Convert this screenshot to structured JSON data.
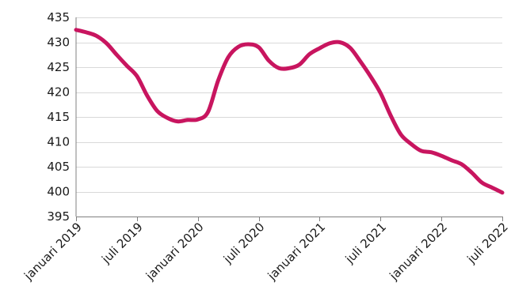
{
  "chart_data": {
    "type": "line",
    "title": "",
    "xlabel": "",
    "ylabel": "",
    "ylim": [
      395,
      435
    ],
    "yticks": [
      "395",
      "400",
      "405",
      "410",
      "415",
      "420",
      "425",
      "430",
      "435"
    ],
    "xticks": [
      "januari 2019",
      "juli 2019",
      "januari 2020",
      "juli 2020",
      "januari 2021",
      "juli 2021",
      "januari 2022",
      "juli 2022"
    ],
    "xlim": [
      "januari 2019",
      "juli 2022"
    ],
    "grid": true,
    "legend": "none",
    "series": [
      {
        "color": "#c8155f",
        "x": [
          "2019-01",
          "2019-02",
          "2019-03",
          "2019-04",
          "2019-05",
          "2019-06",
          "2019-07",
          "2019-08",
          "2019-09",
          "2019-10",
          "2019-11",
          "2019-12",
          "2020-01",
          "2020-02",
          "2020-03",
          "2020-04",
          "2020-05",
          "2020-06",
          "2020-07",
          "2020-08",
          "2020-09",
          "2020-10",
          "2020-11",
          "2020-12",
          "2021-01",
          "2021-02",
          "2021-03",
          "2021-04",
          "2021-05",
          "2021-06",
          "2021-07",
          "2021-08",
          "2021-09",
          "2021-10",
          "2021-11",
          "2021-12",
          "2022-01",
          "2022-02",
          "2022-03",
          "2022-04",
          "2022-05",
          "2022-06",
          "2022-07"
        ],
        "values": [
          432.5,
          432.0,
          431.3,
          429.8,
          427.5,
          425.3,
          423.2,
          419.3,
          416.2,
          414.8,
          414.1,
          414.4,
          414.5,
          416.0,
          422.3,
          427.0,
          429.1,
          429.6,
          429.0,
          426.3,
          424.8,
          424.8,
          425.5,
          427.6,
          428.8,
          429.8,
          430.0,
          428.9,
          426.2,
          423.2,
          419.8,
          415.3,
          411.5,
          409.6,
          408.2,
          407.9,
          407.2,
          406.3,
          405.5,
          403.8,
          401.8,
          400.8,
          399.8
        ]
      }
    ]
  }
}
